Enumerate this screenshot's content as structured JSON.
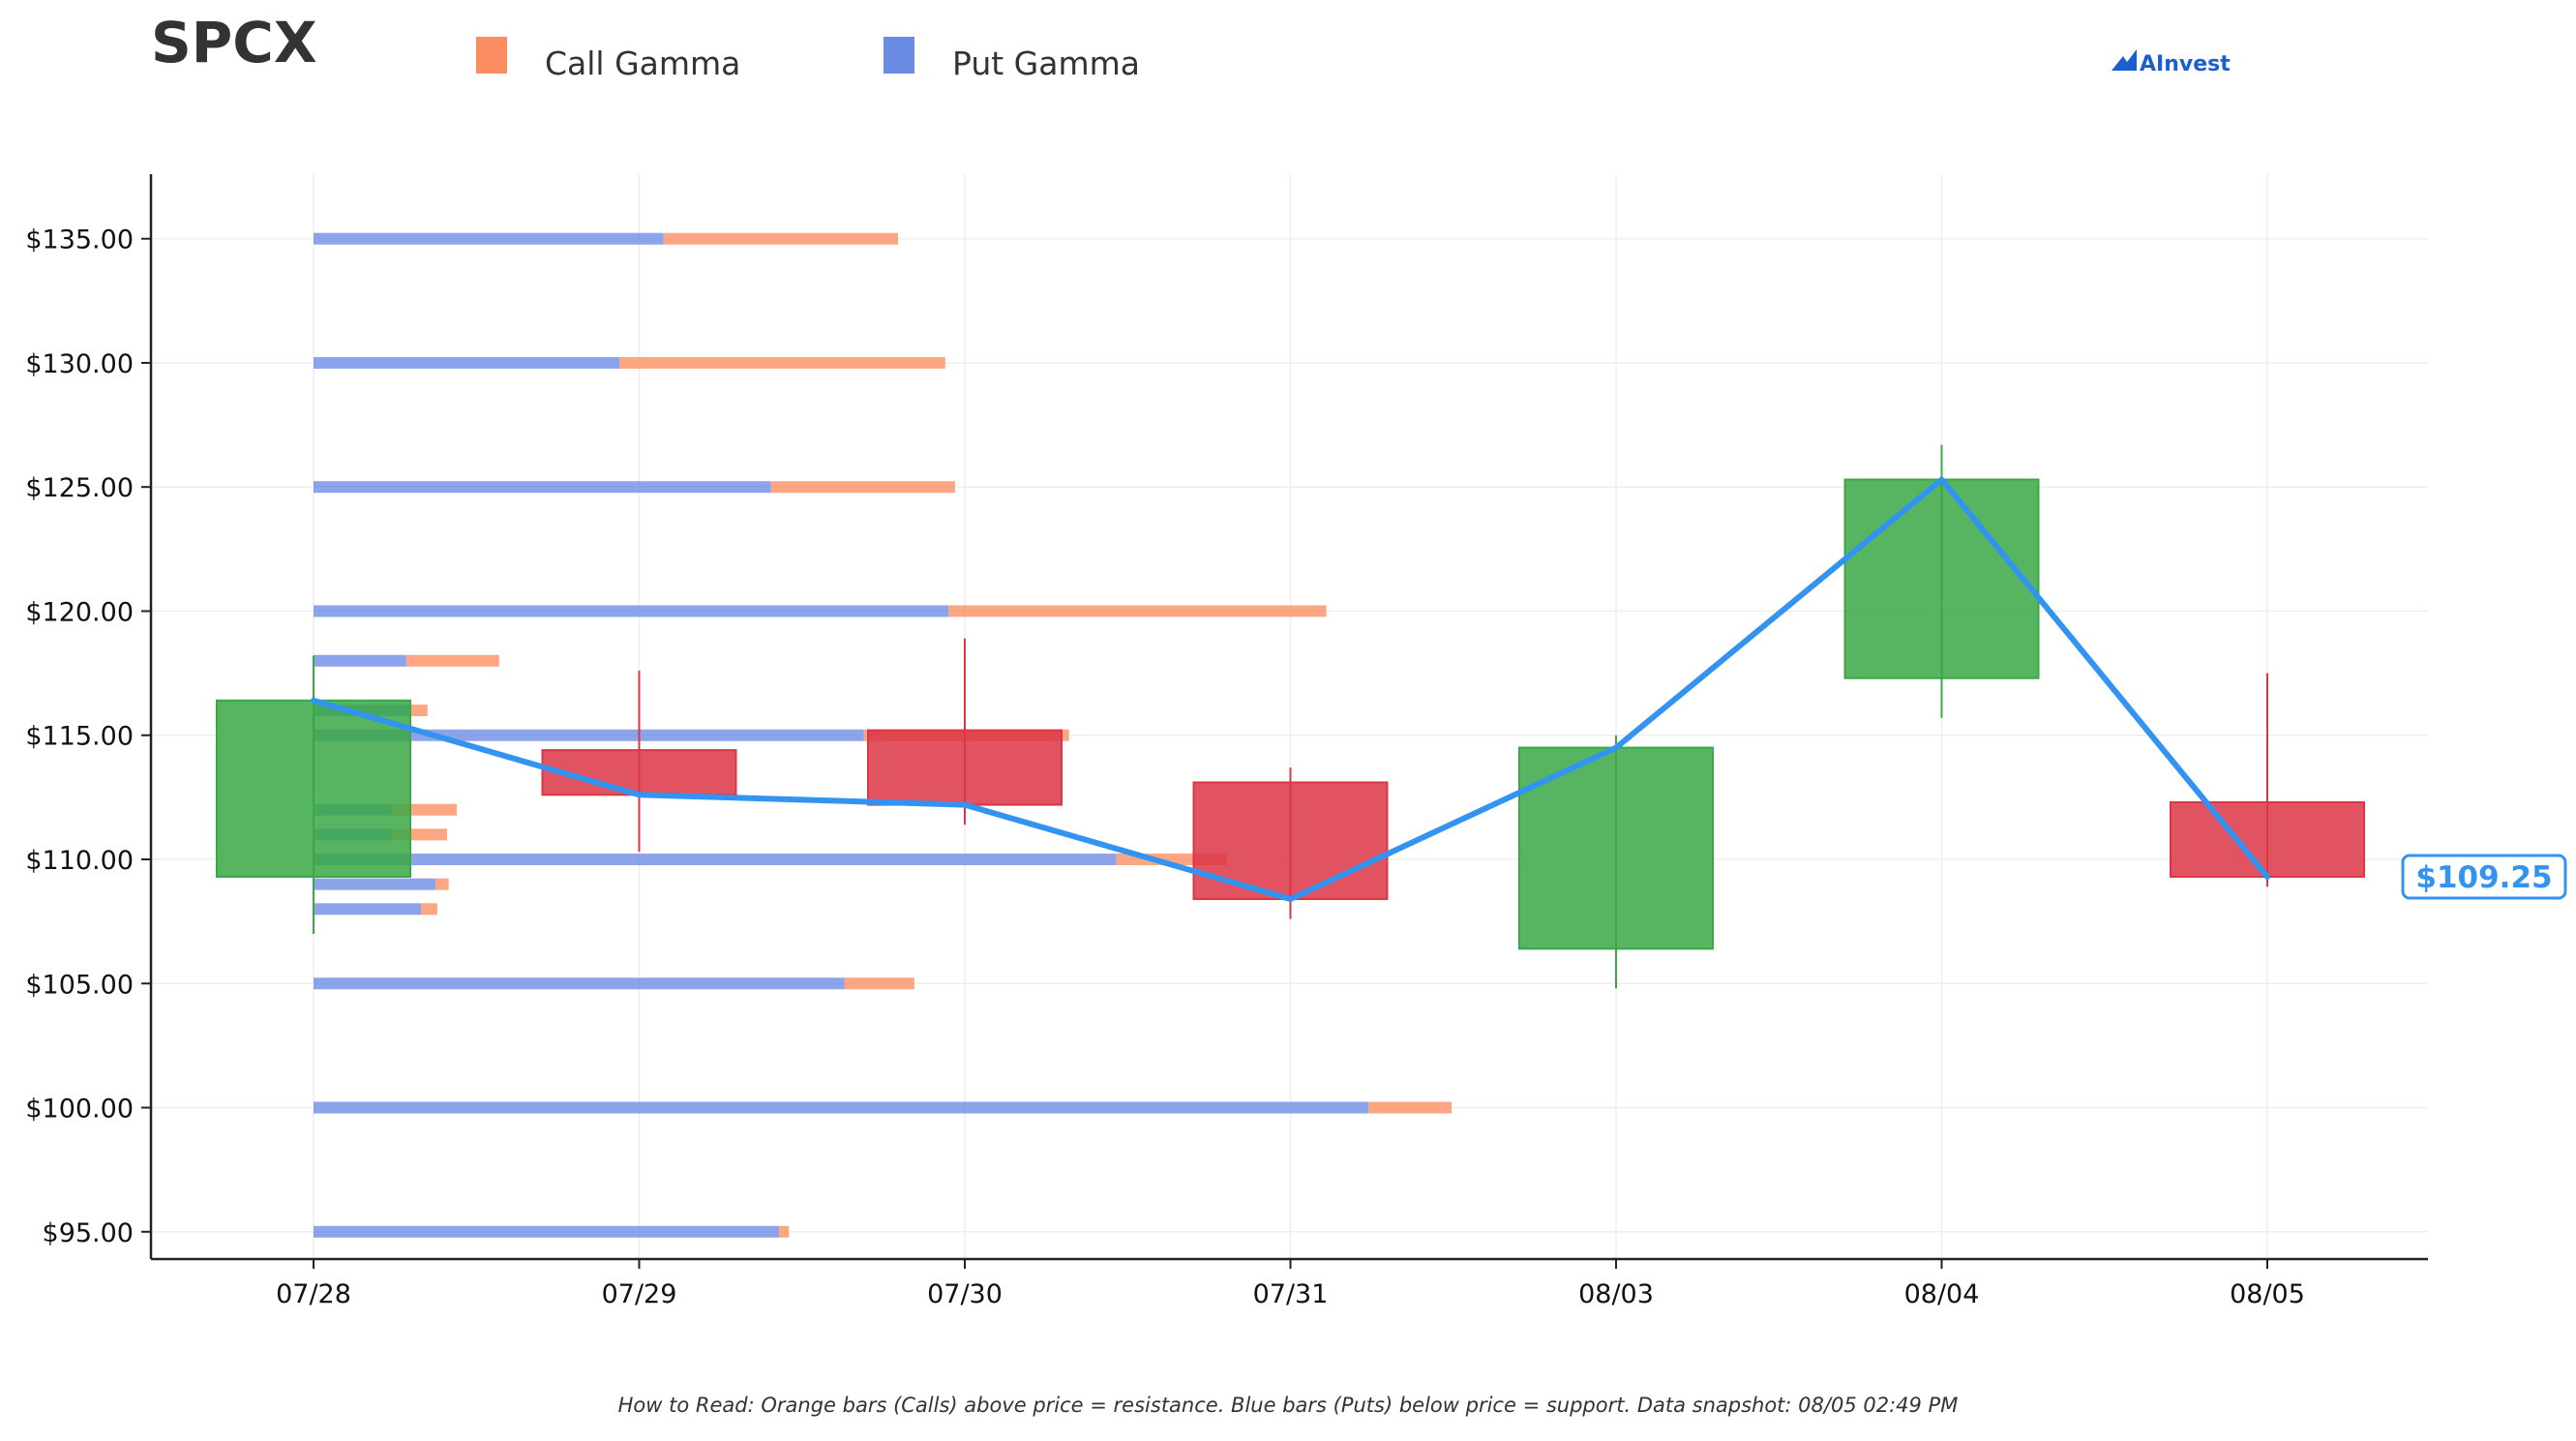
{
  "chart_data": {
    "type": "candlestick",
    "title": "SPCX",
    "x": [
      "07/28",
      "07/29",
      "07/30",
      "07/31",
      "08/03",
      "08/04",
      "08/05"
    ],
    "ylim": [
      93.9,
      137.6
    ],
    "yticks": [
      95,
      100,
      105,
      110,
      115,
      120,
      125,
      130,
      135
    ],
    "ytick_labels": [
      "$95.00",
      "$100.00",
      "$105.00",
      "$110.00",
      "$115.00",
      "$120.00",
      "$125.00",
      "$130.00",
      "$135.00"
    ],
    "grid": true,
    "legend_position": "top",
    "legend": [
      {
        "name": "Call Gamma",
        "color": "#fc8d62"
      },
      {
        "name": "Put Gamma",
        "color": "#6b8ce4"
      }
    ],
    "candles": [
      {
        "date": "07/28",
        "open": 109.3,
        "high": 118.2,
        "low": 107.0,
        "close": 116.4
      },
      {
        "date": "07/29",
        "open": 114.4,
        "high": 117.6,
        "low": 110.3,
        "close": 112.6
      },
      {
        "date": "07/30",
        "open": 115.2,
        "high": 118.9,
        "low": 111.4,
        "close": 112.2
      },
      {
        "date": "07/31",
        "open": 113.1,
        "high": 113.7,
        "low": 107.6,
        "close": 108.4
      },
      {
        "date": "08/03",
        "open": 106.4,
        "high": 115.0,
        "low": 104.8,
        "close": 114.5
      },
      {
        "date": "08/04",
        "open": 117.3,
        "high": 126.7,
        "low": 115.7,
        "close": 125.3
      },
      {
        "date": "08/05",
        "open": 112.3,
        "high": 117.5,
        "low": 108.9,
        "close": 109.3
      }
    ],
    "close_line": {
      "color": "#3294f0",
      "values": [
        116.4,
        112.6,
        112.2,
        108.4,
        114.5,
        125.3,
        109.3
      ]
    },
    "gamma_bars": [
      {
        "strike": 135.0,
        "put": 1.075,
        "call": 0.72
      },
      {
        "strike": 130.0,
        "put": 0.94,
        "call": 1.0
      },
      {
        "strike": 125.0,
        "put": 1.405,
        "call": 0.565
      },
      {
        "strike": 120.0,
        "put": 1.95,
        "call": 1.16
      },
      {
        "strike": 118.0,
        "put": 0.285,
        "call": 0.285
      },
      {
        "strike": 116.0,
        "put": 0.3,
        "call": 0.05
      },
      {
        "strike": 115.0,
        "put": 1.69,
        "call": 0.63
      },
      {
        "strike": 112.0,
        "put": 0.24,
        "call": 0.2
      },
      {
        "strike": 111.0,
        "put": 0.24,
        "call": 0.17
      },
      {
        "strike": 110.0,
        "put": 2.465,
        "call": 0.34
      },
      {
        "strike": 109.0,
        "put": 0.375,
        "call": 0.04
      },
      {
        "strike": 108.0,
        "put": 0.33,
        "call": 0.05
      },
      {
        "strike": 105.0,
        "put": 1.63,
        "call": 0.215
      },
      {
        "strike": 100.0,
        "put": 3.24,
        "call": 0.255
      },
      {
        "strike": 95.0,
        "put": 1.43,
        "call": 0.03
      }
    ],
    "gamma_scale_units_per_day": 1.0,
    "colors": {
      "up": "#3aa845",
      "down": "#dc3545",
      "call": "#fc8d62",
      "put": "#6b8ce4"
    },
    "last_price_label": "$109.25",
    "footnote": "How to Read: Orange bars (Calls) above price = resistance. Blue bars (Puts) below price = support. Data snapshot: 08/05 02:49 PM",
    "watermark": "AInvest"
  }
}
